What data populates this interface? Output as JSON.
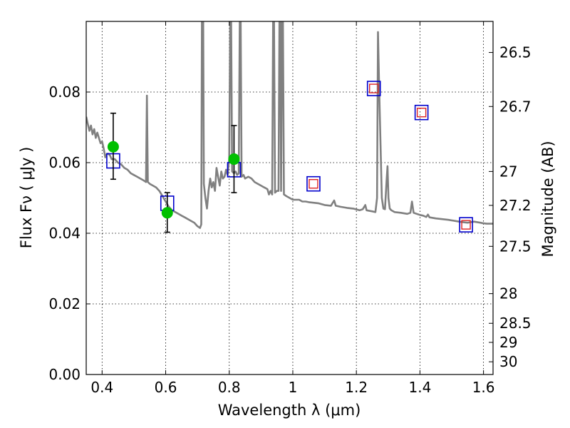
{
  "chart_data": {
    "type": "scatter",
    "title": "",
    "xlabel": "Wavelength  λ (μm)",
    "ylabel": "Flux  Fν  ( μJy )",
    "y2label": "Magnitude (AB)",
    "xlim": [
      0.35,
      1.63
    ],
    "ylim": [
      0.0,
      0.1
    ],
    "grid": true,
    "x_ticks": [
      0.4,
      0.6,
      0.8,
      1.0,
      1.2,
      1.4,
      1.6
    ],
    "x_tick_labels": [
      "0.4",
      "0.6",
      "0.8",
      "1",
      "1.2",
      "1.4",
      "1.6"
    ],
    "y_ticks": [
      0.0,
      0.02,
      0.04,
      0.06,
      0.08
    ],
    "y_tick_labels": [
      "0.00",
      "0.02",
      "0.04",
      "0.06",
      "0.08"
    ],
    "y2_ticks": [
      {
        "label": "26.5",
        "flux": 0.0912
      },
      {
        "label": "26.7",
        "flux": 0.0759
      },
      {
        "label": "27",
        "flux": 0.0575
      },
      {
        "label": "27.2",
        "flux": 0.0479
      },
      {
        "label": "27.5",
        "flux": 0.0363
      },
      {
        "label": "28",
        "flux": 0.0229
      },
      {
        "label": "28.5",
        "flux": 0.0145
      },
      {
        "label": "29",
        "flux": 0.0091
      },
      {
        "label": "30",
        "flux": 0.0036
      }
    ],
    "colors": {
      "sed": "#808080",
      "model_box": "#0000cc",
      "obs_box": "#dd2222",
      "detection": "#00c000",
      "errorbar": "#000000"
    },
    "series": [
      {
        "kind": "line",
        "points": [
          [
            0.35,
            0.073
          ],
          [
            0.355,
            0.071
          ],
          [
            0.36,
            0.069
          ],
          [
            0.365,
            0.0705
          ],
          [
            0.37,
            0.068
          ],
          [
            0.375,
            0.0695
          ],
          [
            0.38,
            0.067
          ],
          [
            0.385,
            0.0685
          ],
          [
            0.39,
            0.067
          ],
          [
            0.395,
            0.0655
          ],
          [
            0.4,
            0.066
          ],
          [
            0.405,
            0.064
          ],
          [
            0.41,
            0.0615
          ],
          [
            0.415,
            0.0625
          ],
          [
            0.42,
            0.0625
          ],
          [
            0.425,
            0.062
          ],
          [
            0.43,
            0.061
          ],
          [
            0.44,
            0.061
          ],
          [
            0.45,
            0.06
          ],
          [
            0.46,
            0.0595
          ],
          [
            0.47,
            0.0585
          ],
          [
            0.48,
            0.058
          ],
          [
            0.49,
            0.057
          ],
          [
            0.5,
            0.0565
          ],
          [
            0.51,
            0.056
          ],
          [
            0.52,
            0.0555
          ],
          [
            0.53,
            0.055
          ],
          [
            0.538,
            0.0545
          ],
          [
            0.541,
            0.079
          ],
          [
            0.544,
            0.0545
          ],
          [
            0.55,
            0.054
          ],
          [
            0.56,
            0.0535
          ],
          [
            0.57,
            0.053
          ],
          [
            0.58,
            0.052
          ],
          [
            0.59,
            0.0505
          ],
          [
            0.6,
            0.049
          ],
          [
            0.61,
            0.0475
          ],
          [
            0.62,
            0.0465
          ],
          [
            0.63,
            0.046
          ],
          [
            0.64,
            0.0455
          ],
          [
            0.65,
            0.045
          ],
          [
            0.66,
            0.0445
          ],
          [
            0.67,
            0.044
          ],
          [
            0.68,
            0.0435
          ],
          [
            0.69,
            0.043
          ],
          [
            0.7,
            0.042
          ],
          [
            0.708,
            0.0415
          ],
          [
            0.712,
            0.0425
          ],
          [
            0.714,
            0.1
          ],
          [
            0.718,
            0.1
          ],
          [
            0.72,
            0.054
          ],
          [
            0.725,
            0.05
          ],
          [
            0.73,
            0.047
          ],
          [
            0.735,
            0.052
          ],
          [
            0.74,
            0.0555
          ],
          [
            0.745,
            0.053
          ],
          [
            0.75,
            0.0545
          ],
          [
            0.755,
            0.052
          ],
          [
            0.76,
            0.0585
          ],
          [
            0.765,
            0.056
          ],
          [
            0.77,
            0.0535
          ],
          [
            0.775,
            0.0575
          ],
          [
            0.78,
            0.0555
          ],
          [
            0.785,
            0.056
          ],
          [
            0.79,
            0.058
          ],
          [
            0.795,
            0.0565
          ],
          [
            0.8,
            0.061
          ],
          [
            0.803,
            0.1
          ],
          [
            0.806,
            0.1
          ],
          [
            0.809,
            0.0575
          ],
          [
            0.815,
            0.057
          ],
          [
            0.82,
            0.0575
          ],
          [
            0.825,
            0.0565
          ],
          [
            0.83,
            0.057
          ],
          [
            0.833,
            0.1
          ],
          [
            0.836,
            0.1
          ],
          [
            0.839,
            0.056
          ],
          [
            0.845,
            0.0565
          ],
          [
            0.85,
            0.0555
          ],
          [
            0.86,
            0.056
          ],
          [
            0.87,
            0.0555
          ],
          [
            0.88,
            0.0545
          ],
          [
            0.89,
            0.054
          ],
          [
            0.9,
            0.0535
          ],
          [
            0.91,
            0.053
          ],
          [
            0.92,
            0.0525
          ],
          [
            0.925,
            0.051
          ],
          [
            0.93,
            0.052
          ],
          [
            0.935,
            0.051
          ],
          [
            0.938,
            0.1
          ],
          [
            0.941,
            0.1
          ],
          [
            0.944,
            0.0515
          ],
          [
            0.95,
            0.052
          ],
          [
            0.955,
            0.052
          ],
          [
            0.958,
            0.1
          ],
          [
            0.961,
            0.1
          ],
          [
            0.963,
            0.052
          ],
          [
            0.966,
            0.1
          ],
          [
            0.969,
            0.1
          ],
          [
            0.972,
            0.051
          ],
          [
            0.98,
            0.0505
          ],
          [
            0.99,
            0.05
          ],
          [
            1.0,
            0.0495
          ],
          [
            1.01,
            0.0495
          ],
          [
            1.02,
            0.0495
          ],
          [
            1.03,
            0.049
          ],
          [
            1.04,
            0.049
          ],
          [
            1.05,
            0.0488
          ],
          [
            1.06,
            0.0487
          ],
          [
            1.08,
            0.0485
          ],
          [
            1.1,
            0.048
          ],
          [
            1.12,
            0.0478
          ],
          [
            1.13,
            0.0493
          ],
          [
            1.135,
            0.0478
          ],
          [
            1.15,
            0.0475
          ],
          [
            1.17,
            0.0472
          ],
          [
            1.19,
            0.047
          ],
          [
            1.21,
            0.0465
          ],
          [
            1.22,
            0.0468
          ],
          [
            1.228,
            0.048
          ],
          [
            1.232,
            0.0465
          ],
          [
            1.25,
            0.0462
          ],
          [
            1.26,
            0.046
          ],
          [
            1.265,
            0.05
          ],
          [
            1.268,
            0.097
          ],
          [
            1.272,
            0.08
          ],
          [
            1.276,
            0.065
          ],
          [
            1.28,
            0.05
          ],
          [
            1.285,
            0.047
          ],
          [
            1.29,
            0.0468
          ],
          [
            1.295,
            0.055
          ],
          [
            1.298,
            0.059
          ],
          [
            1.301,
            0.05
          ],
          [
            1.305,
            0.047
          ],
          [
            1.31,
            0.0465
          ],
          [
            1.32,
            0.046
          ],
          [
            1.34,
            0.0458
          ],
          [
            1.36,
            0.0455
          ],
          [
            1.37,
            0.0458
          ],
          [
            1.375,
            0.049
          ],
          [
            1.38,
            0.0458
          ],
          [
            1.39,
            0.0455
          ],
          [
            1.4,
            0.0452
          ],
          [
            1.41,
            0.045
          ],
          [
            1.42,
            0.0446
          ],
          [
            1.425,
            0.0453
          ],
          [
            1.43,
            0.0445
          ],
          [
            1.45,
            0.0442
          ],
          [
            1.47,
            0.044
          ],
          [
            1.49,
            0.0438
          ],
          [
            1.51,
            0.0435
          ],
          [
            1.53,
            0.0432
          ],
          [
            1.55,
            0.043
          ],
          [
            1.57,
            0.0433
          ],
          [
            1.59,
            0.043
          ],
          [
            1.6,
            0.0428
          ],
          [
            1.61,
            0.0427
          ],
          [
            1.63,
            0.0427
          ]
        ]
      },
      {
        "kind": "model_flux_squares",
        "points": [
          [
            0.435,
            0.0605
          ],
          [
            0.605,
            0.0485
          ],
          [
            0.815,
            0.058
          ],
          [
            1.065,
            0.054
          ],
          [
            1.255,
            0.081
          ],
          [
            1.405,
            0.0742
          ],
          [
            1.545,
            0.0424
          ]
        ]
      },
      {
        "kind": "observed_flux_squares",
        "points": [
          [
            1.065,
            0.054
          ],
          [
            1.255,
            0.081
          ],
          [
            1.405,
            0.0742
          ],
          [
            1.545,
            0.0424
          ]
        ]
      },
      {
        "kind": "detections_with_errors",
        "points": [
          {
            "x": 0.435,
            "y": 0.0645,
            "y_low": 0.0553,
            "y_high": 0.074
          },
          {
            "x": 0.605,
            "y": 0.0458,
            "y_low": 0.0403,
            "y_high": 0.0515
          },
          {
            "x": 0.815,
            "y": 0.061,
            "y_low": 0.0515,
            "y_high": 0.0705
          }
        ]
      }
    ]
  }
}
